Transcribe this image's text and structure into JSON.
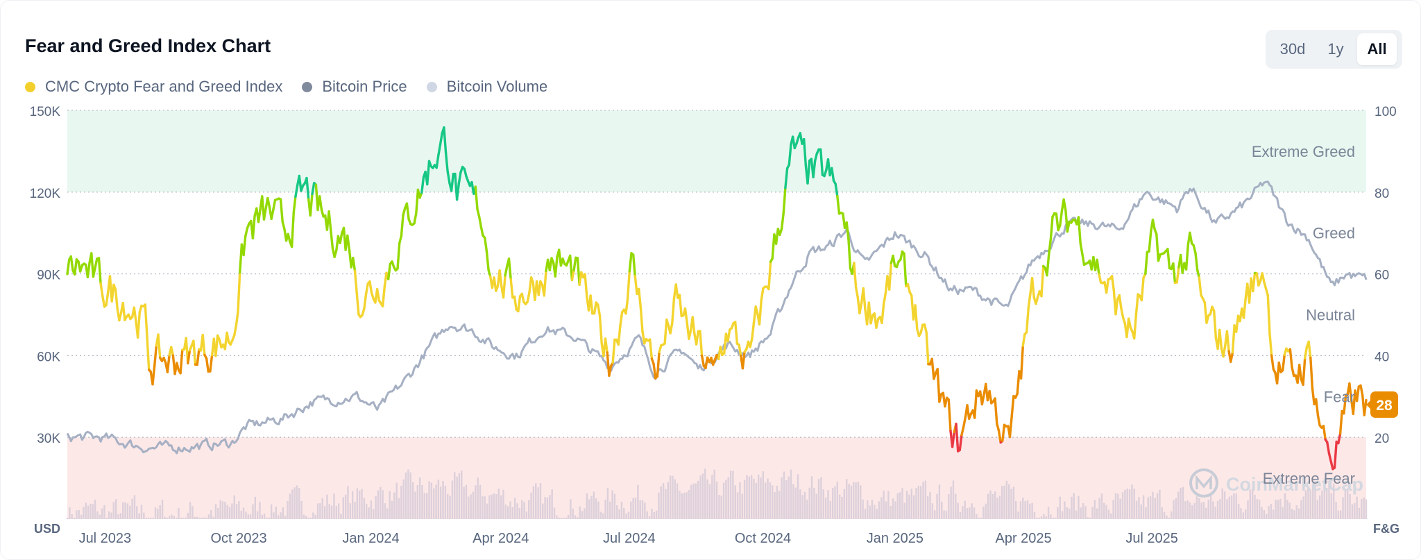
{
  "header": {
    "title": "Fear and Greed Index Chart",
    "range_buttons": [
      {
        "label": "30d",
        "active": false
      },
      {
        "label": "1y",
        "active": false
      },
      {
        "label": "All",
        "active": true
      }
    ]
  },
  "legend": [
    {
      "label": "CMC Crypto Fear and Greed Index",
      "color": "#f2cf2b"
    },
    {
      "label": "Bitcoin Price",
      "color": "#808a9d"
    },
    {
      "label": "Bitcoin Volume",
      "color": "#cfd6e4"
    }
  ],
  "colors": {
    "extreme_greed": "#16c784",
    "greed": "#93d900",
    "neutral": "#f3d42f",
    "fear": "#ea8c00",
    "extreme_fear": "#ea3943",
    "price_line": "#a6b0c3",
    "volume_bars": "#d8cdd8",
    "zone_extreme_greed_bg": "#e8f8f1",
    "zone_extreme_fear_bg": "#fde8e8",
    "current_badge_bg": "#ea8c00"
  },
  "watermark": {
    "text": "CoinMarketCap"
  },
  "chart_data": {
    "type": "line",
    "title": "Fear and Greed Index Chart",
    "x_axis": {
      "ticks": [
        "Jul 2023",
        "Oct 2023",
        "Jan 2024",
        "Apr 2024",
        "Jul 2024",
        "Oct 2024",
        "Jan 2025",
        "Apr 2025",
        "Jul 2025"
      ],
      "range": [
        "2023-06-22",
        "2025-12-15"
      ]
    },
    "y_left": {
      "unit_label": "USD",
      "ticks": [
        "150K",
        "120K",
        "90K",
        "60K",
        "30K"
      ],
      "range": [
        0,
        150000
      ]
    },
    "y_right": {
      "unit_label": "F&G",
      "ticks": [
        "100",
        "80",
        "60",
        "40",
        "20"
      ],
      "range": [
        0,
        100
      ]
    },
    "zones": [
      {
        "label": "Extreme Greed",
        "range": [
          80,
          100
        ]
      },
      {
        "label": "Greed",
        "range": [
          60,
          80
        ]
      },
      {
        "label": "Neutral",
        "range": [
          40,
          60
        ]
      },
      {
        "label": "Fear",
        "range": [
          20,
          40
        ]
      },
      {
        "label": "Extreme Fear",
        "range": [
          0,
          20
        ]
      }
    ],
    "current_value": "28",
    "grid": true,
    "legend_position": "top-left",
    "series": [
      {
        "name": "CMC Crypto Fear and Greed Index",
        "axis": "right",
        "points": [
          [
            "2023-06-22",
            60
          ],
          [
            "2023-07-01",
            62
          ],
          [
            "2023-07-15",
            57
          ],
          [
            "2023-08-01",
            54
          ],
          [
            "2023-08-15",
            48
          ],
          [
            "2023-08-18",
            38
          ],
          [
            "2023-09-01",
            39
          ],
          [
            "2023-09-15",
            40
          ],
          [
            "2023-10-01",
            42
          ],
          [
            "2023-10-15",
            45
          ],
          [
            "2023-10-25",
            70
          ],
          [
            "2023-11-10",
            75
          ],
          [
            "2023-11-20",
            70
          ],
          [
            "2023-12-05",
            80
          ],
          [
            "2023-12-20",
            72
          ],
          [
            "2024-01-05",
            68
          ],
          [
            "2024-01-12",
            55
          ],
          [
            "2024-01-25",
            57
          ],
          [
            "2024-02-05",
            65
          ],
          [
            "2024-02-20",
            78
          ],
          [
            "2024-03-05",
            90
          ],
          [
            "2024-03-12",
            92
          ],
          [
            "2024-03-20",
            80
          ],
          [
            "2024-04-05",
            76
          ],
          [
            "2024-04-15",
            60
          ],
          [
            "2024-05-01",
            55
          ],
          [
            "2024-05-15",
            58
          ],
          [
            "2024-05-25",
            63
          ],
          [
            "2024-06-10",
            60
          ],
          [
            "2024-06-25",
            48
          ],
          [
            "2024-07-05",
            39
          ],
          [
            "2024-07-20",
            62
          ],
          [
            "2024-08-05",
            36
          ],
          [
            "2024-08-20",
            52
          ],
          [
            "2024-09-05",
            42
          ],
          [
            "2024-09-15",
            34
          ],
          [
            "2024-09-25",
            47
          ],
          [
            "2024-10-10",
            38
          ],
          [
            "2024-10-25",
            62
          ],
          [
            "2024-11-10",
            90
          ],
          [
            "2024-11-25",
            84
          ],
          [
            "2024-12-05",
            84
          ],
          [
            "2024-12-15",
            72
          ],
          [
            "2024-12-25",
            55
          ],
          [
            "2025-01-10",
            50
          ],
          [
            "2025-01-20",
            62
          ],
          [
            "2025-02-01",
            55
          ],
          [
            "2025-02-10",
            40
          ],
          [
            "2025-02-25",
            25
          ],
          [
            "2025-03-05",
            18
          ],
          [
            "2025-03-15",
            28
          ],
          [
            "2025-03-25",
            33
          ],
          [
            "2025-04-05",
            22
          ],
          [
            "2025-04-10",
            18
          ],
          [
            "2025-04-25",
            53
          ],
          [
            "2025-05-10",
            70
          ],
          [
            "2025-05-25",
            74
          ],
          [
            "2025-06-10",
            62
          ],
          [
            "2025-06-25",
            52
          ],
          [
            "2025-07-05",
            45
          ],
          [
            "2025-07-20",
            68
          ],
          [
            "2025-08-01",
            60
          ],
          [
            "2025-08-15",
            65
          ],
          [
            "2025-08-25",
            48
          ],
          [
            "2025-09-10",
            42
          ],
          [
            "2025-09-25",
            56
          ],
          [
            "2025-10-05",
            62
          ],
          [
            "2025-10-12",
            38
          ],
          [
            "2025-10-25",
            35
          ],
          [
            "2025-11-05",
            40
          ],
          [
            "2025-11-15",
            20
          ],
          [
            "2025-11-22",
            15
          ],
          [
            "2025-12-01",
            25
          ],
          [
            "2025-12-08",
            30
          ],
          [
            "2025-12-15",
            28
          ]
        ]
      },
      {
        "name": "Bitcoin Price",
        "axis": "left",
        "points": [
          [
            "2023-06-22",
            30000
          ],
          [
            "2023-07-15",
            30000
          ],
          [
            "2023-08-18",
            26000
          ],
          [
            "2023-09-15",
            26500
          ],
          [
            "2023-10-15",
            28000
          ],
          [
            "2023-10-25",
            34000
          ],
          [
            "2023-11-20",
            37000
          ],
          [
            "2023-12-10",
            43000
          ],
          [
            "2024-01-10",
            45000
          ],
          [
            "2024-01-25",
            40000
          ],
          [
            "2024-02-15",
            52000
          ],
          [
            "2024-03-05",
            66000
          ],
          [
            "2024-03-15",
            72000
          ],
          [
            "2024-04-01",
            69000
          ],
          [
            "2024-04-15",
            63000
          ],
          [
            "2024-05-01",
            60000
          ],
          [
            "2024-05-20",
            70000
          ],
          [
            "2024-06-10",
            67000
          ],
          [
            "2024-07-05",
            56000
          ],
          [
            "2024-07-25",
            66000
          ],
          [
            "2024-08-05",
            54000
          ],
          [
            "2024-08-25",
            62000
          ],
          [
            "2024-09-05",
            55000
          ],
          [
            "2024-09-25",
            64000
          ],
          [
            "2024-10-10",
            60000
          ],
          [
            "2024-10-25",
            68000
          ],
          [
            "2024-11-10",
            88000
          ],
          [
            "2024-11-22",
            98000
          ],
          [
            "2024-12-05",
            100000
          ],
          [
            "2024-12-17",
            106000
          ],
          [
            "2024-12-30",
            93000
          ],
          [
            "2025-01-20",
            105000
          ],
          [
            "2025-02-10",
            97000
          ],
          [
            "2025-02-28",
            84000
          ],
          [
            "2025-03-15",
            84000
          ],
          [
            "2025-04-08",
            77000
          ],
          [
            "2025-04-25",
            94000
          ],
          [
            "2025-05-20",
            108000
          ],
          [
            "2025-06-10",
            108000
          ],
          [
            "2025-06-25",
            106000
          ],
          [
            "2025-07-14",
            120000
          ],
          [
            "2025-08-05",
            114000
          ],
          [
            "2025-08-14",
            122000
          ],
          [
            "2025-09-01",
            108000
          ],
          [
            "2025-09-20",
            115000
          ],
          [
            "2025-10-06",
            124000
          ],
          [
            "2025-10-20",
            110000
          ],
          [
            "2025-11-05",
            103000
          ],
          [
            "2025-11-21",
            85000
          ],
          [
            "2025-12-01",
            90000
          ],
          [
            "2025-12-15",
            88000
          ]
        ]
      },
      {
        "name": "Bitcoin Volume",
        "axis": "left",
        "points": [
          [
            "2023-06-22",
            3000
          ],
          [
            "2023-09-01",
            2000
          ],
          [
            "2023-12-01",
            5000
          ],
          [
            "2024-03-10",
            12000
          ],
          [
            "2024-06-01",
            5000
          ],
          [
            "2024-08-05",
            9000
          ],
          [
            "2024-11-15",
            14000
          ],
          [
            "2025-01-15",
            7000
          ],
          [
            "2025-03-15",
            8000
          ],
          [
            "2025-06-01",
            5000
          ],
          [
            "2025-08-15",
            6000
          ],
          [
            "2025-10-10",
            9000
          ],
          [
            "2025-11-21",
            8000
          ],
          [
            "2025-12-15",
            5000
          ]
        ]
      }
    ]
  }
}
